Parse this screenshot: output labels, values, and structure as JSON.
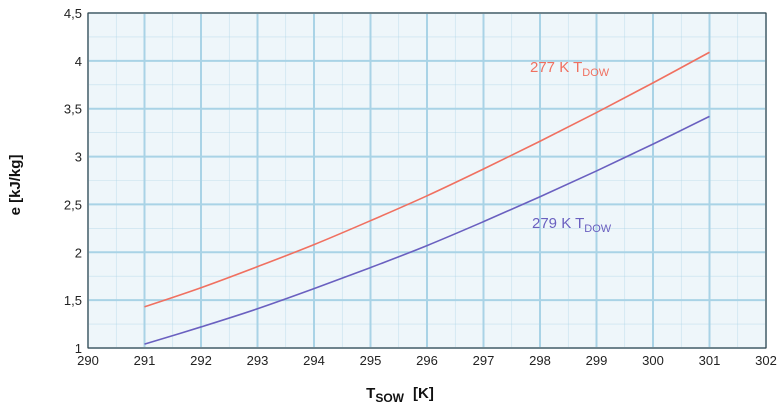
{
  "chart_data": {
    "type": "line",
    "xlabel": {
      "main": "T",
      "sub": "SOW",
      "unit": "[K]"
    },
    "ylabel": "e  [kJ/kg]",
    "xlim": [
      290,
      302
    ],
    "ylim": [
      1,
      4.5
    ],
    "xticks": [
      "290",
      "291",
      "292",
      "293",
      "294",
      "295",
      "296",
      "297",
      "298",
      "299",
      "300",
      "301",
      "302"
    ],
    "yticks": [
      "1",
      "1,5",
      "2",
      "2,5",
      "3",
      "3,5",
      "4",
      "4,5"
    ],
    "grid": true,
    "colors": {
      "plot_bg": "#eef6fa",
      "grid": "#a9d3e6",
      "frame": "#333333"
    },
    "series": [
      {
        "label": {
          "main": "277 K T",
          "sub": "DOW"
        },
        "color": "#f07060",
        "x": [
          291,
          292,
          293,
          294,
          295,
          296,
          297,
          298,
          299,
          300,
          301
        ],
        "y": [
          1.43,
          1.63,
          1.85,
          2.08,
          2.33,
          2.59,
          2.87,
          3.16,
          3.46,
          3.77,
          4.09
        ]
      },
      {
        "label": {
          "main": "279 K T",
          "sub": "DOW"
        },
        "color": "#6a60c0",
        "x": [
          291,
          292,
          293,
          294,
          295,
          296,
          297,
          298,
          299,
          300,
          301
        ],
        "y": [
          1.04,
          1.22,
          1.41,
          1.62,
          1.84,
          2.07,
          2.32,
          2.58,
          2.85,
          3.13,
          3.42
        ]
      }
    ]
  }
}
